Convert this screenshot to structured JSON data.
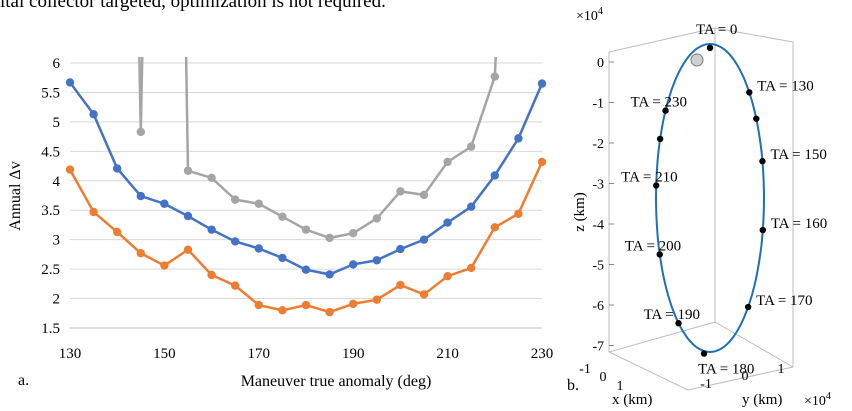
{
  "top_text": "ital collector targeted, optimization is not required.",
  "panel_a_label": "a.",
  "panel_b_label": "b.",
  "chart_data": [
    {
      "type": "line",
      "xlabel": "Maneuver true anomaly (deg)",
      "ylabel": "Annual Δv",
      "xlim": [
        130,
        230
      ],
      "ylim": [
        1.5,
        6
      ],
      "xticks": [
        130,
        150,
        170,
        190,
        210,
        230
      ],
      "yticks": [
        1.5,
        2,
        2.5,
        3,
        3.5,
        4,
        4.5,
        5,
        5.5,
        6
      ],
      "grid": "horizontal",
      "legend": "none",
      "series": [
        {
          "color": "#a5a5a5",
          "x": [
            145,
            155,
            160,
            165,
            170,
            175,
            180,
            185,
            190,
            195,
            200,
            205,
            210,
            215,
            220
          ],
          "y": [
            4.83,
            4.17,
            4.05,
            3.68,
            3.61,
            3.39,
            3.17,
            3.03,
            3.11,
            3.36,
            3.82,
            3.76,
            4.32,
            4.58,
            5.77
          ],
          "note_pts": "curve exits above plot near x=144 (left) and x=146/154 and x=222"
        },
        {
          "color": "#4472c4",
          "x": [
            130,
            135,
            140,
            145,
            150,
            155,
            160,
            165,
            170,
            175,
            180,
            185,
            190,
            195,
            200,
            205,
            210,
            215,
            220,
            225,
            230
          ],
          "y": [
            5.67,
            5.13,
            4.21,
            3.74,
            3.61,
            3.4,
            3.17,
            2.97,
            2.85,
            2.69,
            2.49,
            2.41,
            2.58,
            2.65,
            2.84,
            3.0,
            3.29,
            3.56,
            4.09,
            4.72,
            5.65
          ]
        },
        {
          "color": "#ed7d31",
          "x": [
            130,
            135,
            140,
            145,
            150,
            155,
            160,
            165,
            170,
            175,
            180,
            185,
            190,
            195,
            200,
            205,
            210,
            215,
            220,
            225,
            230
          ],
          "y": [
            4.19,
            3.47,
            3.13,
            2.77,
            2.56,
            2.83,
            2.4,
            2.22,
            1.89,
            1.8,
            1.89,
            1.77,
            1.91,
            1.98,
            2.23,
            2.07,
            2.38,
            2.52,
            3.21,
            3.44,
            4.32
          ]
        }
      ]
    },
    {
      "type": "scatter",
      "title": "",
      "zlabel": "z (km)",
      "xlabel": "x (km)",
      "ylabel": "y (km)",
      "exponent_label_top": "×10",
      "exponent_label_bottom": "×10",
      "exponent": "4",
      "zticks": [
        0,
        -1,
        -2,
        -3,
        -4,
        -5,
        -6,
        -7
      ],
      "xticks": [
        -1,
        0,
        1
      ],
      "yticks": [
        -1,
        0,
        1
      ],
      "orbit_color": "#1f6fb8",
      "annotations": [
        {
          "label": "TA = 0",
          "z": 0.35
        },
        {
          "label": "TA = 130",
          "z": -0.75
        },
        {
          "label": "TA = 230",
          "z": -1.2
        },
        {
          "label": "TA = 150",
          "z": -2.45
        },
        {
          "label": "TA = 210",
          "z": -3.05
        },
        {
          "label": "TA = 160",
          "z": -4.15
        },
        {
          "label": "TA = 200",
          "z": -4.75
        },
        {
          "label": "TA = 170",
          "z": -6.05
        },
        {
          "label": "TA = 190",
          "z": -6.45
        },
        {
          "label": "TA = 180",
          "z": -7.2
        }
      ]
    }
  ]
}
